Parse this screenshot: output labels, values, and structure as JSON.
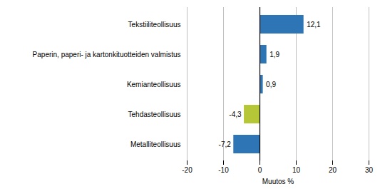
{
  "chart_data": {
    "type": "bar",
    "orientation": "horizontal",
    "categories": [
      "Metalliteollisuus",
      "Tehdasteollisuus",
      "Kemianteollisuus",
      "Paperin, paperi- ja kartonkituotteiden valmistus",
      "Tekstiiliteollisuus"
    ],
    "values": [
      -7.2,
      -4.3,
      0.9,
      1.9,
      12.1
    ],
    "value_labels": [
      "-7,2",
      "-4,3",
      "0,9",
      "1,9",
      "12,1"
    ],
    "colors": [
      "#2e75b6",
      "#b5c736",
      "#2e75b6",
      "#2e75b6",
      "#2e75b6"
    ],
    "xlabel": "Muutos %",
    "xlim": [
      -20,
      30
    ],
    "xticks": [
      -20,
      -10,
      0,
      10,
      20,
      30
    ],
    "grid": true,
    "data_labels": true
  }
}
